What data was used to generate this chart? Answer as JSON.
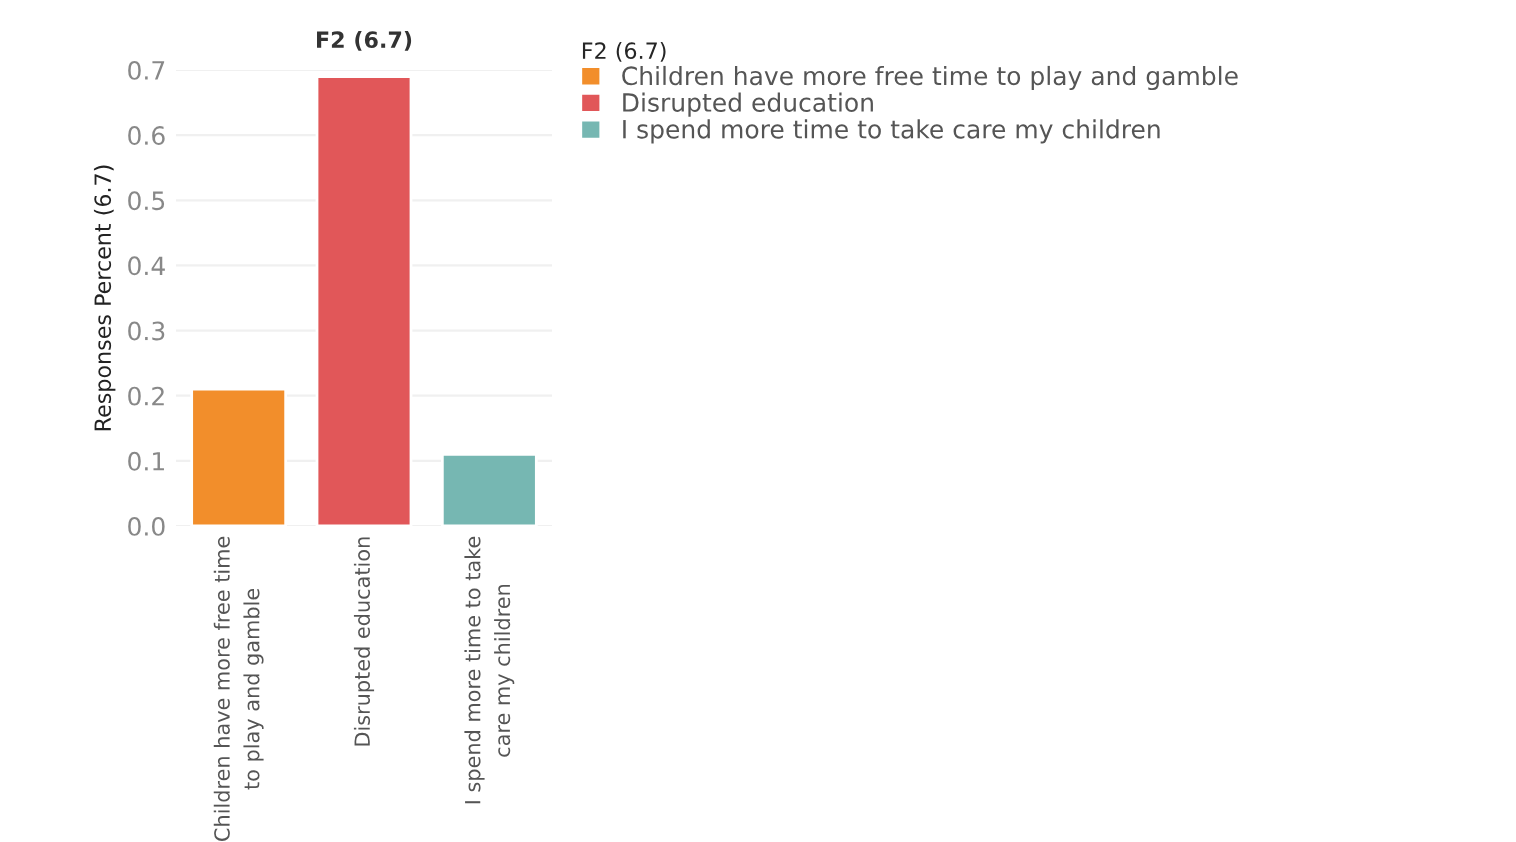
{
  "chart_data": {
    "type": "bar",
    "title": "F2 (6.7)",
    "ylabel": "Responses Percent (6.7)",
    "legend_title": "F2 (6.7)",
    "categories": [
      "Children have more free time\nto play and gamble",
      "Disrupted education",
      "I spend more time to take\ncare my children"
    ],
    "series": [
      {
        "name": "Children have more free time to play and gamble",
        "color": "#f28e2b",
        "values": [
          0.21,
          null,
          null
        ]
      },
      {
        "name": "Disrupted education",
        "color": "#e15759",
        "values": [
          null,
          0.69,
          null
        ]
      },
      {
        "name": "I spend more time to take care my children",
        "color": "#76b7b2",
        "values": [
          null,
          null,
          0.11
        ]
      }
    ],
    "ylim": [
      0,
      0.7
    ],
    "yticks": [
      {
        "value": 0,
        "label": "0.0"
      },
      0.1,
      0.2,
      0.3,
      0.4,
      0.5,
      0.6,
      0.7
    ],
    "grid": "y",
    "legend": "top right"
  }
}
